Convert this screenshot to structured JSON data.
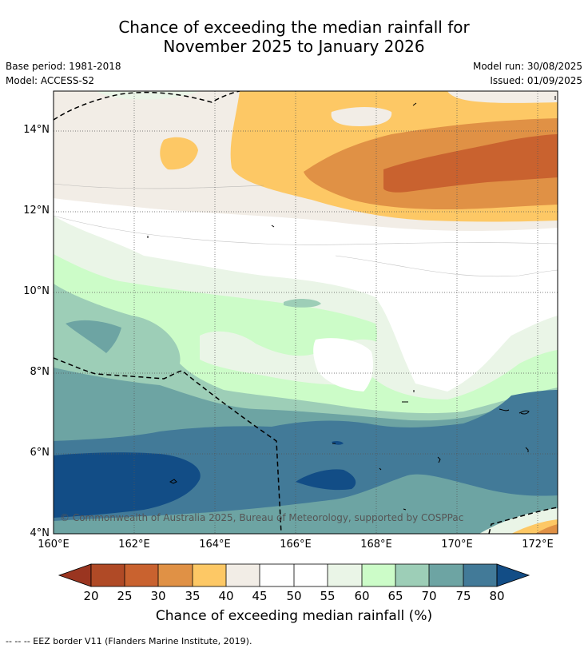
{
  "title_line1": "Chance of exceeding the median rainfall for",
  "title_line2": "November 2025 to January 2026",
  "base_period": "Base period: 1981-2018",
  "model": "Model: ACCESS-S2",
  "model_run": "Model run: 30/08/2025",
  "issued": "Issued: 01/09/2025",
  "copyright": "© Commonwealth of Australia 2025, Bureau of Meteorology, supported by COSPPac",
  "footer": "--  --  -- EEZ border V11 (Flanders Marine Institute, 2019).",
  "colorbar_title": "Chance of exceeding median rainfall (%)",
  "lat_ticks": [
    "14°N",
    "12°N",
    "10°N",
    "8°N",
    "6°N",
    "4°N"
  ],
  "lon_ticks": [
    "160°E",
    "162°E",
    "164°E",
    "166°E",
    "168°E",
    "170°E",
    "172°E"
  ],
  "colorbar": {
    "labels": [
      "20",
      "25",
      "30",
      "35",
      "40",
      "45",
      "50",
      "55",
      "60",
      "65",
      "70",
      "75",
      "80"
    ],
    "colors": {
      "lt20": "#9a3520",
      "c20": "#b04a26",
      "c25": "#c9622f",
      "c30": "#e09145",
      "c35": "#fdc865",
      "c40": "#f2ede6",
      "c45": "#ffffff",
      "c50": "#ffffff",
      "c55": "#eaf5e7",
      "c60": "#ccfcc8",
      "c65": "#9dceb7",
      "c70": "#6da4a3",
      "c75": "#427a98",
      "gt80": "#124d86"
    }
  }
}
